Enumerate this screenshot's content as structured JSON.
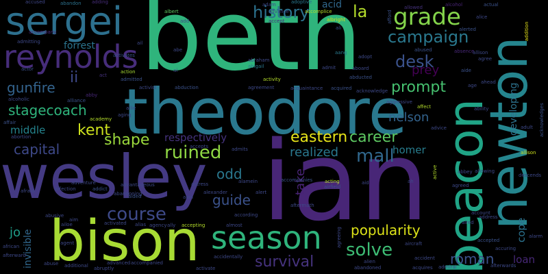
{
  "words": [
    {
      "text": "beth",
      "color": "#2fb47c"
    },
    {
      "text": "ian",
      "color": "#482677"
    },
    {
      "text": "theodore",
      "color": "#2a788e"
    },
    {
      "text": "wesley",
      "color": "#443a83"
    },
    {
      "text": "bison",
      "color": "#a8db34"
    },
    {
      "text": "beacon",
      "color": "#20a486"
    },
    {
      "text": "newton",
      "color": "#25858e"
    },
    {
      "text": "sergei",
      "color": "#2d708e"
    },
    {
      "text": "reynolds",
      "color": "#472d7b"
    },
    {
      "text": "season",
      "color": "#2fb47c"
    },
    {
      "text": "la",
      "color": "#b5de2b"
    },
    {
      "text": "grade",
      "color": "#84d44b"
    },
    {
      "text": "history",
      "color": "#2c728e"
    },
    {
      "text": "campaign",
      "color": "#2a788e"
    },
    {
      "text": "desk",
      "color": "#3b528b"
    },
    {
      "text": "prompt",
      "color": "#46c06f"
    },
    {
      "text": "ii",
      "color": "#3e4989"
    },
    {
      "text": "forrest",
      "color": "#2b748e"
    },
    {
      "text": "gunfire",
      "color": "#33638d"
    },
    {
      "text": "prey",
      "color": "#440154"
    },
    {
      "text": "developing",
      "color": "#2c728e"
    },
    {
      "text": "stagecoach",
      "color": "#2fb47c"
    },
    {
      "text": "kent",
      "color": "#cde11d"
    },
    {
      "text": "nelson",
      "color": "#33638d"
    },
    {
      "text": "middle",
      "color": "#25848e"
    },
    {
      "text": "capital",
      "color": "#3e4989"
    },
    {
      "text": "shape",
      "color": "#9bd93c"
    },
    {
      "text": "respectively",
      "color": "#46337e"
    },
    {
      "text": "eastern",
      "color": "#e7e419"
    },
    {
      "text": "career",
      "color": "#5ec962"
    },
    {
      "text": "ruined",
      "color": "#8fd744"
    },
    {
      "text": "mall",
      "color": "#31688e"
    },
    {
      "text": "realized",
      "color": "#2a788e"
    },
    {
      "text": "homer",
      "color": "#287d8e"
    },
    {
      "text": "odd",
      "color": "#2a788e"
    },
    {
      "text": "guide",
      "color": "#3b528b"
    },
    {
      "text": "take",
      "color": "#482475"
    },
    {
      "text": "course",
      "color": "#3e4a89"
    },
    {
      "text": "popularity",
      "color": "#dde318"
    },
    {
      "text": "cope",
      "color": "#2c728e"
    },
    {
      "text": "solve",
      "color": "#3dbc74"
    },
    {
      "text": "invisible",
      "color": "#31688e"
    },
    {
      "text": "jo",
      "color": "#1f9e89"
    },
    {
      "text": "survival",
      "color": "#46337e"
    },
    {
      "text": "roman",
      "color": "#3b528b"
    },
    {
      "text": "loan",
      "color": "#482878"
    },
    {
      "text": "accused",
      "color": "#3f4788"
    },
    {
      "text": "abandon",
      "color": "#2c728e"
    },
    {
      "text": "adding",
      "color": "#472d7b"
    },
    {
      "text": "acid",
      "color": "#31688e"
    },
    {
      "text": "adoptive",
      "color": "#2a788e"
    },
    {
      "text": "allowed",
      "color": "#46337e"
    },
    {
      "text": "actual",
      "color": "#3b528b"
    },
    {
      "text": "alice",
      "color": "#3e4989"
    },
    {
      "text": "alcohol",
      "color": "#482475"
    },
    {
      "text": "albert",
      "color": "#5ec962"
    },
    {
      "text": "accomplice",
      "color": "#b5de2b"
    },
    {
      "text": "advance",
      "color": "#3e4989"
    },
    {
      "text": "albright",
      "color": "#cde11d"
    },
    {
      "text": "ali",
      "color": "#3b528b"
    },
    {
      "text": "accept",
      "color": "#472d7b"
    },
    {
      "text": "alerted",
      "color": "#3b528b"
    },
    {
      "text": "afford",
      "color": "#3b528b"
    },
    {
      "text": "addition",
      "color": "#e7e419"
    },
    {
      "text": "accompany",
      "color": "#482878"
    },
    {
      "text": "admitting",
      "color": "#3e4989"
    },
    {
      "text": "activates",
      "color": "#3b528b"
    },
    {
      "text": "abigail",
      "color": "#2a788e"
    },
    {
      "text": "abraham",
      "color": "#3e4989"
    },
    {
      "text": "aang",
      "color": "#2a788e"
    },
    {
      "text": "abducted",
      "color": "#3b528b"
    },
    {
      "text": "adopt",
      "color": "#3e4989"
    },
    {
      "text": "abused",
      "color": "#3b528b"
    },
    {
      "text": "absence",
      "color": "#482878"
    },
    {
      "text": "allison",
      "color": "#3e4989"
    },
    {
      "text": "agree",
      "color": "#3e4989"
    },
    {
      "text": "aide",
      "color": "#3b528b"
    },
    {
      "text": "ahead",
      "color": "#3e4989"
    },
    {
      "text": "actor",
      "color": "#3b528b"
    },
    {
      "text": "act",
      "color": "#46337e"
    },
    {
      "text": "action",
      "color": "#a8db34"
    },
    {
      "text": "admitted",
      "color": "#3b528b"
    },
    {
      "text": "activity",
      "color": "#b5de2b"
    },
    {
      "text": "aboard",
      "color": "#3e4989"
    },
    {
      "text": "admit",
      "color": "#3e4989"
    },
    {
      "text": "activist",
      "color": "#3e4989"
    },
    {
      "text": "abduction",
      "color": "#3b528b"
    },
    {
      "text": "agreement",
      "color": "#3e4989"
    },
    {
      "text": "acquaintance",
      "color": "#3e4989"
    },
    {
      "text": "acquired",
      "color": "#3b528b"
    },
    {
      "text": "acknowledge",
      "color": "#3e4989"
    },
    {
      "text": "aggressive",
      "color": "#3e4989"
    },
    {
      "text": "age",
      "color": "#3e4989"
    },
    {
      "text": "ability",
      "color": "#3e4989"
    },
    {
      "text": "affect",
      "color": "#b5de2b"
    },
    {
      "text": "acknowledges",
      "color": "#3b528b"
    },
    {
      "text": "alcoholic",
      "color": "#3e4989"
    },
    {
      "text": "alliance",
      "color": "#3b528b"
    },
    {
      "text": "abby",
      "color": "#482878"
    },
    {
      "text": "academy",
      "color": "#b5de2b"
    },
    {
      "text": "aging",
      "color": "#3e4989"
    },
    {
      "text": "allie",
      "color": "#3e4989"
    },
    {
      "text": "advice",
      "color": "#3e4989"
    },
    {
      "text": "adult",
      "color": "#3e4989"
    },
    {
      "text": "affair",
      "color": "#3b528b"
    },
    {
      "text": "abortion",
      "color": "#3e4989"
    },
    {
      "text": "allison",
      "color": "#cde11d"
    },
    {
      "text": "accepts",
      "color": "#3e4989"
    },
    {
      "text": "admits",
      "color": "#3e4989"
    },
    {
      "text": "afraid",
      "color": "#3e4989"
    },
    {
      "text": "affection",
      "color": "#3e4989"
    },
    {
      "text": "addict",
      "color": "#3b528b"
    },
    {
      "text": "abandoning",
      "color": "#3e4989"
    },
    {
      "text": "adventure",
      "color": "#3e4989"
    },
    {
      "text": "advantageous",
      "color": "#3e4989"
    },
    {
      "text": "aided",
      "color": "#3b528b"
    },
    {
      "text": "actress",
      "color": "#3e4989"
    },
    {
      "text": "alamein",
      "color": "#3e4989"
    },
    {
      "text": "accompanies",
      "color": "#3b528b"
    },
    {
      "text": "acting",
      "color": "#b5de2b"
    },
    {
      "text": "aid",
      "color": "#3e4989"
    },
    {
      "text": "ah",
      "color": "#3e4989"
    },
    {
      "text": "active",
      "color": "#b5de2b"
    },
    {
      "text": "abbey",
      "color": "#3e4989"
    },
    {
      "text": "agreed",
      "color": "#3e4989"
    },
    {
      "text": "allowing",
      "color": "#3e4989"
    },
    {
      "text": "descends",
      "color": "#3e4989"
    },
    {
      "text": "alexander",
      "color": "#3e4989"
    },
    {
      "text": "alert",
      "color": "#3e4989"
    },
    {
      "text": "aian",
      "color": "#3e4989"
    },
    {
      "text": "airfield",
      "color": "#3b528b"
    },
    {
      "text": "aftermath",
      "color": "#3e4989"
    },
    {
      "text": "abusive",
      "color": "#3e4989"
    },
    {
      "text": "aim",
      "color": "#3e4989"
    },
    {
      "text": "ailoe",
      "color": "#3e4989"
    },
    {
      "text": "activated",
      "color": "#3e4989"
    },
    {
      "text": "alias",
      "color": "#3e4989"
    },
    {
      "text": "agency",
      "color": "#3e4989"
    },
    {
      "text": "ally",
      "color": "#3e4989"
    },
    {
      "text": "accepting",
      "color": "#b5de2b"
    },
    {
      "text": "almost",
      "color": "#3e4989"
    },
    {
      "text": "according",
      "color": "#3e4989"
    },
    {
      "text": "account",
      "color": "#3e4989"
    },
    {
      "text": "address",
      "color": "#3e4989"
    },
    {
      "text": "aired",
      "color": "#3e4989"
    },
    {
      "text": "accepted",
      "color": "#3b528b"
    },
    {
      "text": "accuring",
      "color": "#3e4989"
    },
    {
      "text": "alarm",
      "color": "#3e4989"
    },
    {
      "text": "african",
      "color": "#3e4989"
    },
    {
      "text": "afterward",
      "color": "#3e4989"
    },
    {
      "text": "agent",
      "color": "#3e4989"
    },
    {
      "text": "abuse",
      "color": "#3e4989"
    },
    {
      "text": "additional",
      "color": "#3e4989"
    },
    {
      "text": "abruptly",
      "color": "#3e4989"
    },
    {
      "text": "advanced",
      "color": "#3e4989"
    },
    {
      "text": "accompanied",
      "color": "#3e4989"
    },
    {
      "text": "activate",
      "color": "#3e4989"
    },
    {
      "text": "accidentally",
      "color": "#3e4989"
    },
    {
      "text": "alien",
      "color": "#3e4989"
    },
    {
      "text": "abandoned",
      "color": "#3e4989"
    },
    {
      "text": "acquires",
      "color": "#3e4989"
    },
    {
      "text": "accident",
      "color": "#3e4989"
    },
    {
      "text": "admiral",
      "color": "#3e4989"
    },
    {
      "text": "afterwards",
      "color": "#3e4989"
    },
    {
      "text": "aircraft",
      "color": "#3e4989"
    },
    {
      "text": "agreeing",
      "color": "#3e4989"
    },
    {
      "text": "adam",
      "color": "#3e4989"
    },
    {
      "text": "add",
      "color": "#3e4989"
    },
    {
      "text": "abe",
      "color": "#3e4989"
    },
    {
      "text": "ai",
      "color": "#3e4989"
    },
    {
      "text": "ail",
      "color": "#3e4989"
    }
  ]
}
